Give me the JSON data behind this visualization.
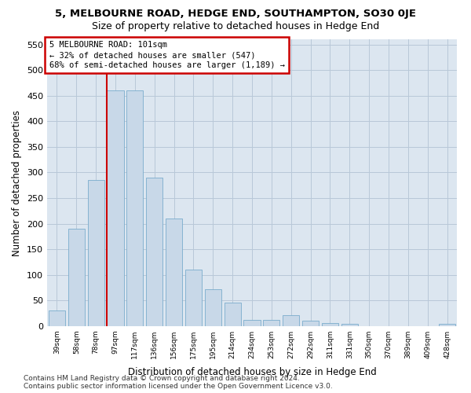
{
  "title": "5, MELBOURNE ROAD, HEDGE END, SOUTHAMPTON, SO30 0JE",
  "subtitle": "Size of property relative to detached houses in Hedge End",
  "xlabel": "Distribution of detached houses by size in Hedge End",
  "ylabel": "Number of detached properties",
  "bar_color": "#c8d8e8",
  "bar_edge_color": "#7aaccc",
  "grid_color": "#b8c8d8",
  "background_color": "#dce6f0",
  "vline_color": "#cc0000",
  "annotation_text": "5 MELBOURNE ROAD: 101sqm\n← 32% of detached houses are smaller (547)\n68% of semi-detached houses are larger (1,189) →",
  "annotation_box_facecolor": "#ffffff",
  "annotation_box_edgecolor": "#cc0000",
  "categories": [
    "39sqm",
    "58sqm",
    "78sqm",
    "97sqm",
    "117sqm",
    "136sqm",
    "156sqm",
    "175sqm",
    "195sqm",
    "214sqm",
    "234sqm",
    "253sqm",
    "272sqm",
    "292sqm",
    "311sqm",
    "331sqm",
    "350sqm",
    "370sqm",
    "389sqm",
    "409sqm",
    "428sqm"
  ],
  "values": [
    30,
    190,
    285,
    460,
    460,
    290,
    210,
    110,
    72,
    46,
    13,
    12,
    22,
    10,
    6,
    5,
    0,
    0,
    0,
    0,
    5
  ],
  "ylim_max": 560,
  "yticks": [
    0,
    50,
    100,
    150,
    200,
    250,
    300,
    350,
    400,
    450,
    500,
    550
  ],
  "footer_line1": "Contains HM Land Registry data © Crown copyright and database right 2024.",
  "footer_line2": "Contains public sector information licensed under the Open Government Licence v3.0.",
  "title_fontsize": 9.5,
  "subtitle_fontsize": 9,
  "ylabel_fontsize": 8.5,
  "xlabel_fontsize": 8.5,
  "footer_fontsize": 6.5,
  "tick_fontsize": 8,
  "xtick_fontsize": 6.5,
  "annotation_fontsize": 7.5
}
